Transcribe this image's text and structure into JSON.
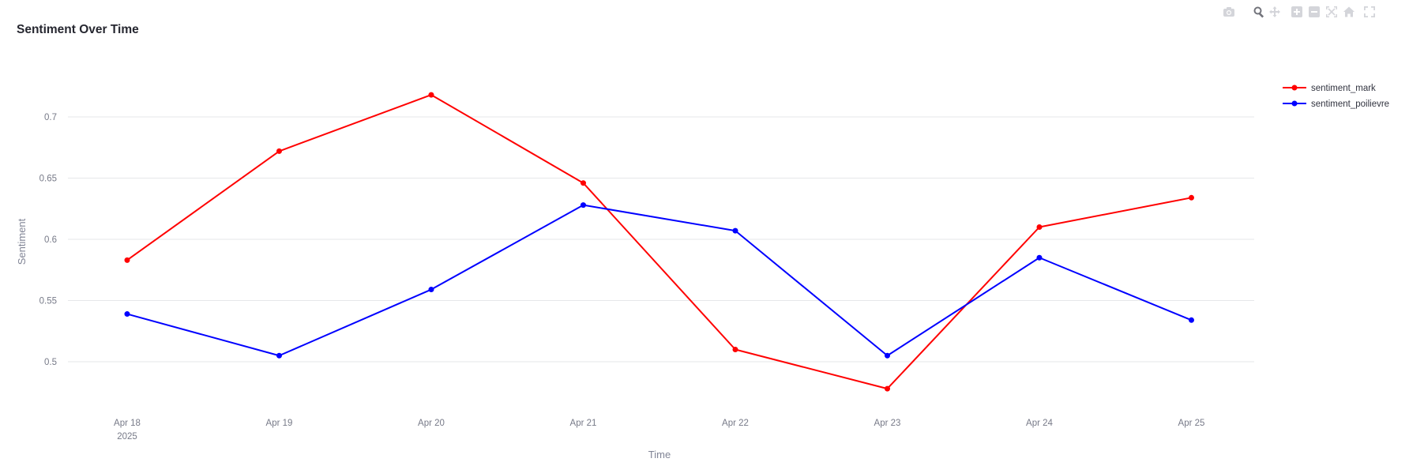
{
  "chart_data": {
    "type": "line",
    "title": "Sentiment Over Time",
    "xlabel": "Time",
    "ylabel": "Sentiment",
    "categories": [
      "Apr 18",
      "Apr 19",
      "Apr 20",
      "Apr 21",
      "Apr 22",
      "Apr 23",
      "Apr 24",
      "Apr 25"
    ],
    "x_year_label": "2025",
    "y_ticks": [
      "0.5",
      "0.55",
      "0.6",
      "0.65",
      "0.7"
    ],
    "ylim": [
      0.467,
      0.735
    ],
    "grid": true,
    "legend_position": "top-right",
    "series": [
      {
        "name": "sentiment_mark",
        "color": "#ff0000",
        "values": [
          0.583,
          0.672,
          0.718,
          0.646,
          0.51,
          0.478,
          0.61,
          0.634
        ]
      },
      {
        "name": "sentiment_poilievre",
        "color": "#0000ff",
        "values": [
          0.539,
          0.505,
          0.559,
          0.628,
          0.607,
          0.505,
          0.585,
          0.534
        ]
      }
    ]
  },
  "modebar": {
    "icons": [
      "camera-icon",
      "zoom-icon",
      "pan-icon",
      "zoom-in-icon",
      "zoom-out-icon",
      "autoscale-icon",
      "reset-axes-icon",
      "fullscreen-icon"
    ]
  }
}
